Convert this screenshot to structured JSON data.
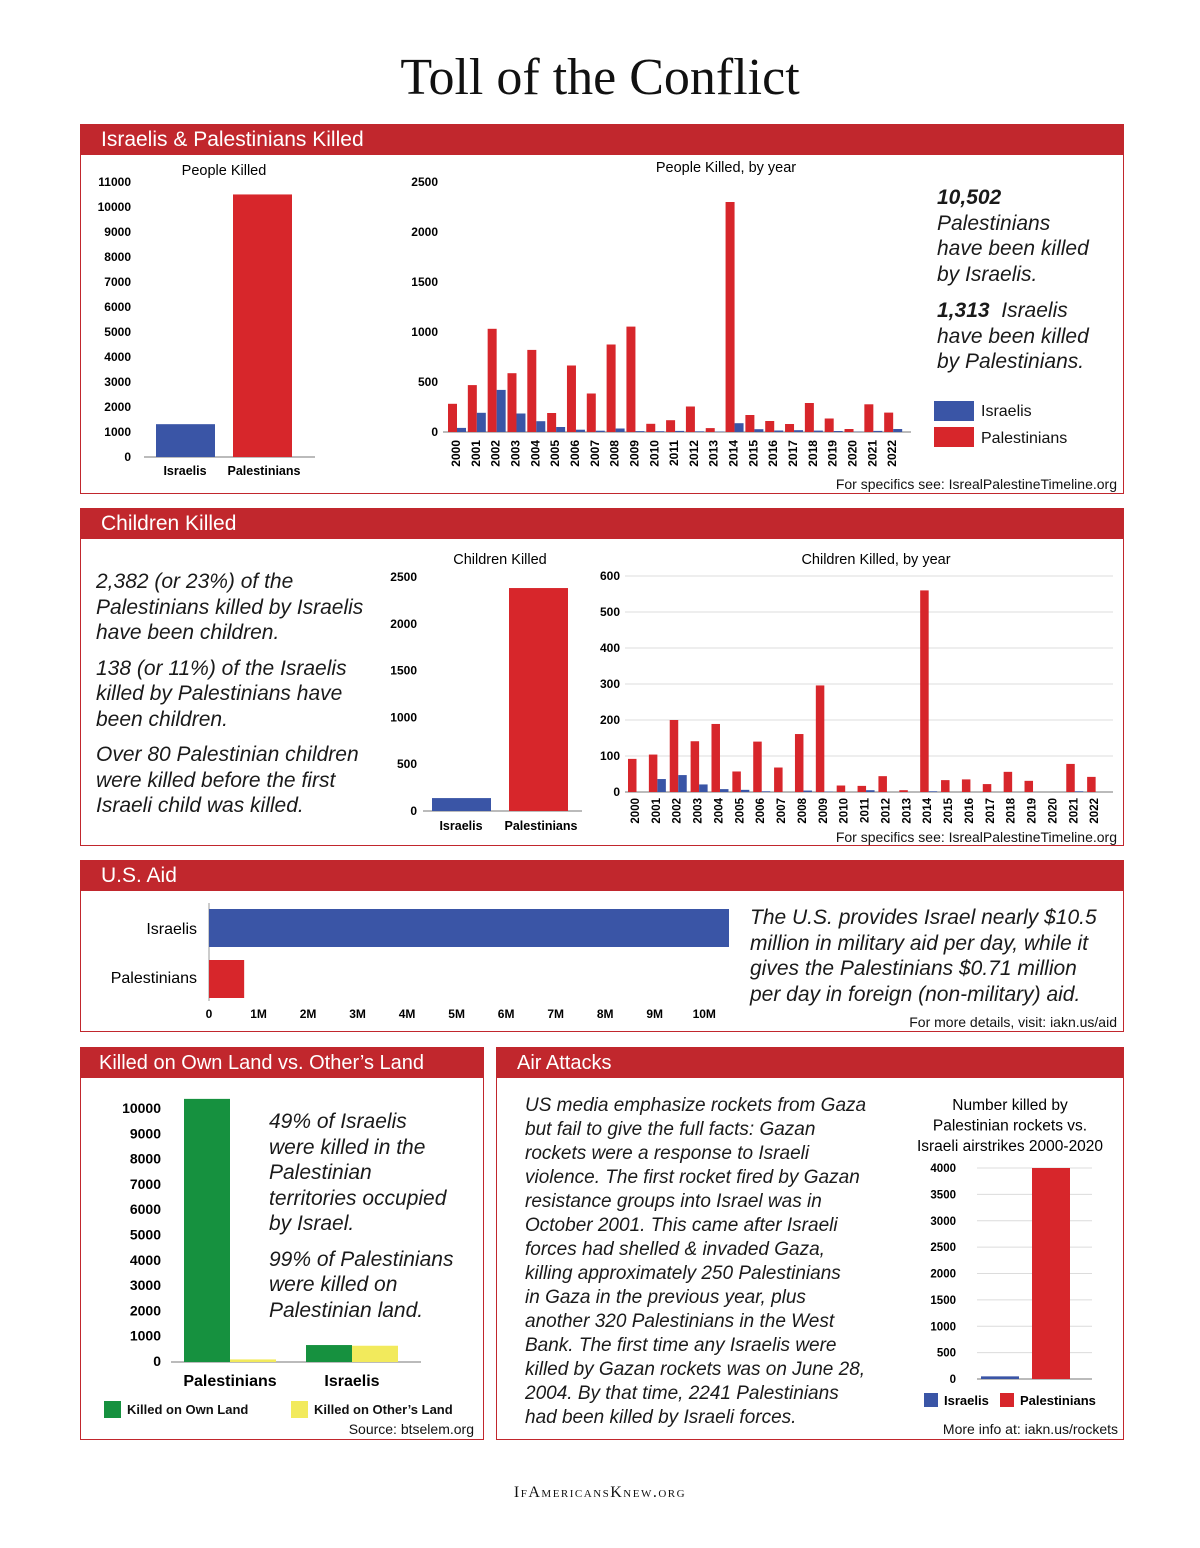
{
  "page_title": "Toll of the Conflict",
  "footer": {
    "text": "IfAmericansKnew.org"
  },
  "colors": {
    "israelis": "#3a55a6",
    "palestinians": "#d7262b",
    "own_land": "#16913f",
    "others_land": "#f2ea5c",
    "accent": "#c1272d"
  },
  "section1": {
    "header": "Israelis & Palestinians Killed",
    "stat1_num": "10,502",
    "stat1_l1": "Palestinians",
    "stat1_l2": "have been killed",
    "stat1_l3": "by Israelis.",
    "stat2_num": "1,313",
    "stat2_l1": "Israelis",
    "stat2_l2": "have been killed",
    "stat2_l3": "by Palestinians.",
    "legend_israelis": "Israelis",
    "legend_palestinians": "Palestinians",
    "source": "For specifics see: IsrealPalestineTimeline.org"
  },
  "section2": {
    "header": "Children Killed",
    "p1_l1": "2,382 (or 23%) of the",
    "p1_l2": "Palestinians killed by Israelis",
    "p1_l3": "have been children.",
    "p2_l1": "138 (or 11%) of the Israelis",
    "p2_l2": "killed by Palestinians have",
    "p2_l3": "been children.",
    "p3_l1": "Over 80 Palestinian children",
    "p3_l2": "were killed before the first",
    "p3_l3": "Israeli child was killed.",
    "source": "For specifics see: IsrealPalestineTimeline.org"
  },
  "section3": {
    "header": "U.S. Aid",
    "t_l1": "The U.S. provides Israel nearly $10.5",
    "t_l2": "million in military aid per day, while it",
    "t_l3": "gives the Palestinians $0.71 million",
    "t_l4": "per day in foreign (non-military) aid.",
    "source": "For more details, visit: iakn.us/aid"
  },
  "section4": {
    "header": "Killed on Own Land vs. Other’s Land",
    "t1_l1": "49% of Israelis",
    "t1_l2": "were killed in the",
    "t1_l3": "Palestinian",
    "t1_l4": "territories occupied",
    "t1_l5": "by Israel.",
    "t2_l1": "99% of Palestinians",
    "t2_l2": "were killed on",
    "t2_l3": "Palestinian land.",
    "legend_own": "Killed on Own Land",
    "legend_others": "Killed on Other’s Land",
    "source": "Source: btselem.org"
  },
  "section5": {
    "header": "Air Attacks",
    "t_l1": "US media emphasize rockets from Gaza",
    "t_l2": "but fail to give the full facts: Gazan",
    "t_l3": "rockets were a response to Israeli",
    "t_l4": "violence. The first rocket fired by Gazan",
    "t_l5": "resistance groups into Israel was in",
    "t_l6": "October 2001. This came after Israeli",
    "t_l7": "forces had shelled & invaded Gaza,",
    "t_l8": "killing approximately 250 Palestinians",
    "t_l9": "in Gaza in the previous year, plus",
    "t_l10": "another 320 Palestinians in the West",
    "t_l11": "Bank. The first time any Israelis were",
    "t_l12": "killed by Gazan rockets was on June 28,",
    "t_l13": "2004. By that time, 2241 Palestinians",
    "t_l14": "had been killed by Israeli forces.",
    "source": "More info at: iakn.us/rockets"
  },
  "chart_data": [
    {
      "id": "people_killed_total",
      "type": "bar",
      "title": "People Killed",
      "categories": [
        "Israelis",
        "Palestinians"
      ],
      "values": [
        1313,
        10502
      ],
      "ylim": [
        0,
        11000
      ],
      "yticks": [
        0,
        1000,
        2000,
        3000,
        4000,
        5000,
        6000,
        7000,
        8000,
        9000,
        10000,
        11000
      ]
    },
    {
      "id": "people_killed_by_year",
      "type": "bar",
      "title": "People Killed, by year",
      "categories": [
        "2000",
        "2001",
        "2002",
        "2003",
        "2004",
        "2005",
        "2006",
        "2007",
        "2008",
        "2009",
        "2010",
        "2011",
        "2012",
        "2013",
        "2014",
        "2015",
        "2016",
        "2017",
        "2018",
        "2019",
        "2020",
        "2021",
        "2022"
      ],
      "series": [
        {
          "name": "Israelis",
          "values": [
            41,
            192,
            421,
            185,
            108,
            50,
            23,
            13,
            35,
            9,
            8,
            11,
            7,
            4,
            88,
            28,
            15,
            18,
            14,
            10,
            3,
            11,
            30
          ]
        },
        {
          "name": "Palestinians",
          "values": [
            282,
            469,
            1032,
            588,
            821,
            190,
            665,
            385,
            875,
            1054,
            82,
            118,
            255,
            39,
            2300,
            170,
            110,
            80,
            290,
            135,
            30,
            277,
            194
          ]
        }
      ],
      "ylim": [
        0,
        2500
      ],
      "yticks": [
        0,
        500,
        1000,
        1500,
        2000,
        2500
      ]
    },
    {
      "id": "children_killed_total",
      "type": "bar",
      "title": "Children Killed",
      "categories": [
        "Israelis",
        "Palestinians"
      ],
      "values": [
        138,
        2382
      ],
      "ylim": [
        0,
        2500
      ],
      "yticks": [
        0,
        500,
        1000,
        1500,
        2000,
        2500
      ]
    },
    {
      "id": "children_killed_by_year",
      "type": "bar",
      "title": "Children Killed, by year",
      "categories": [
        "2000",
        "2001",
        "2002",
        "2003",
        "2004",
        "2005",
        "2006",
        "2007",
        "2008",
        "2009",
        "2010",
        "2011",
        "2012",
        "2013",
        "2014",
        "2015",
        "2016",
        "2017",
        "2018",
        "2019",
        "2020",
        "2021",
        "2022"
      ],
      "series": [
        {
          "name": "Israelis",
          "values": [
            0,
            36,
            47,
            21,
            8,
            6,
            2,
            0,
            4,
            1,
            0,
            5,
            0,
            0,
            2,
            0,
            0,
            0,
            0,
            0,
            0,
            2,
            0
          ]
        },
        {
          "name": "Palestinians",
          "values": [
            92,
            104,
            200,
            141,
            189,
            57,
            140,
            68,
            161,
            296,
            18,
            17,
            44,
            5,
            560,
            33,
            35,
            22,
            56,
            31,
            0,
            78,
            42
          ]
        }
      ],
      "ylim": [
        0,
        600
      ],
      "yticks": [
        0,
        100,
        200,
        300,
        400,
        500,
        600
      ]
    },
    {
      "id": "us_aid",
      "type": "bar",
      "orientation": "horizontal",
      "categories": [
        "Israelis",
        "Palestinians"
      ],
      "values": [
        10500000,
        710000
      ],
      "xlim": [
        0,
        10500000
      ],
      "xticks": [
        0,
        1000000,
        2000000,
        3000000,
        4000000,
        5000000,
        6000000,
        7000000,
        8000000,
        9000000,
        10000000
      ],
      "xtick_labels": [
        "0",
        "1M",
        "2M",
        "3M",
        "4M",
        "5M",
        "6M",
        "7M",
        "8M",
        "9M",
        "10M"
      ]
    },
    {
      "id": "own_vs_other_land",
      "type": "bar",
      "categories": [
        "Palestinians",
        "Israelis"
      ],
      "series": [
        {
          "name": "Killed on Own Land",
          "values": [
            10400,
            670
          ]
        },
        {
          "name": "Killed on Other’s Land",
          "values": [
            102,
            643
          ]
        }
      ],
      "ylim": [
        0,
        10000
      ],
      "yticks": [
        0,
        1000,
        2000,
        3000,
        4000,
        5000,
        6000,
        7000,
        8000,
        9000,
        10000
      ]
    },
    {
      "id": "rockets_vs_airstrikes",
      "type": "bar",
      "title_lines": [
        "Number killed by",
        "Palestinian rockets vs.",
        "Israeli airstrikes 2000-2020"
      ],
      "categories": [
        "Israelis",
        "Palestinians"
      ],
      "values": [
        50,
        4000
      ],
      "ylim": [
        0,
        4000
      ],
      "yticks": [
        0,
        500,
        1000,
        1500,
        2000,
        2500,
        3000,
        3500,
        4000
      ],
      "legend": [
        "Israelis",
        "Palestinians"
      ]
    }
  ]
}
